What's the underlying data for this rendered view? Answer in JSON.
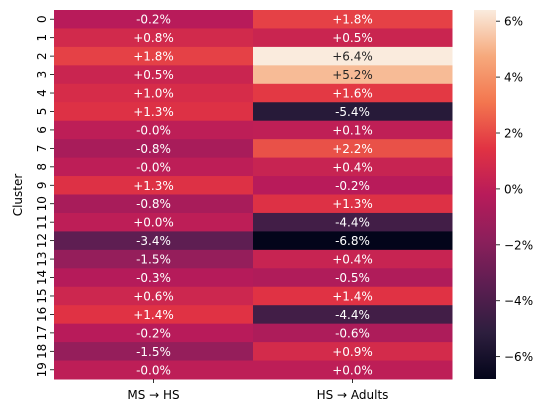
{
  "chart_data": {
    "type": "heatmap",
    "title": "",
    "xlabel": "",
    "ylabel": "Cluster",
    "columns": [
      "MS → HS",
      "HS → Adults"
    ],
    "rows": [
      "0",
      "1",
      "2",
      "3",
      "4",
      "5",
      "6",
      "7",
      "8",
      "9",
      "10",
      "11",
      "12",
      "13",
      "14",
      "15",
      "16",
      "17",
      "18",
      "19"
    ],
    "values": [
      [
        -0.2,
        1.8
      ],
      [
        0.8,
        0.5
      ],
      [
        1.8,
        6.4
      ],
      [
        0.5,
        5.2
      ],
      [
        1.0,
        1.6
      ],
      [
        1.3,
        -5.4
      ],
      [
        -0.0,
        0.1
      ],
      [
        -0.8,
        2.2
      ],
      [
        -0.0,
        0.4
      ],
      [
        1.3,
        -0.2
      ],
      [
        -0.8,
        1.3
      ],
      [
        0.0,
        -4.4
      ],
      [
        -3.4,
        -6.8
      ],
      [
        -1.5,
        0.4
      ],
      [
        -0.3,
        -0.5
      ],
      [
        0.6,
        1.4
      ],
      [
        1.4,
        -4.4
      ],
      [
        -0.2,
        -0.6
      ],
      [
        -1.5,
        0.9
      ],
      [
        -0.0,
        0.0
      ]
    ],
    "annotations": [
      [
        "-0.2%",
        "+1.8%"
      ],
      [
        "+0.8%",
        "+0.5%"
      ],
      [
        "+1.8%",
        "+6.4%"
      ],
      [
        "+0.5%",
        "+5.2%"
      ],
      [
        "+1.0%",
        "+1.6%"
      ],
      [
        "+1.3%",
        "-5.4%"
      ],
      [
        "-0.0%",
        "+0.1%"
      ],
      [
        "-0.8%",
        "+2.2%"
      ],
      [
        "-0.0%",
        "+0.4%"
      ],
      [
        "+1.3%",
        "-0.2%"
      ],
      [
        "-0.8%",
        "+1.3%"
      ],
      [
        "+0.0%",
        "-4.4%"
      ],
      [
        "-3.4%",
        "-6.8%"
      ],
      [
        "-1.5%",
        "+0.4%"
      ],
      [
        "-0.3%",
        "-0.5%"
      ],
      [
        "+0.6%",
        "+1.4%"
      ],
      [
        "+1.4%",
        "-4.4%"
      ],
      [
        "-0.2%",
        "-0.6%"
      ],
      [
        "-1.5%",
        "+0.9%"
      ],
      [
        "-0.0%",
        "+0.0%"
      ]
    ],
    "colorbar": {
      "range": [
        -6.8,
        6.4
      ],
      "ticks": [
        -6,
        -4,
        -2,
        0,
        2,
        4,
        6
      ],
      "tick_labels": [
        "−6%",
        "−4%",
        "−2%",
        "0%",
        "2%",
        "4%",
        "6%"
      ],
      "colormap": [
        "#03051a",
        "#2d1e3e",
        "#5b1e51",
        "#8b1f5b",
        "#b81b5a",
        "#e13343",
        "#f3764f",
        "#f6a97c",
        "#faebdd"
      ]
    },
    "grid": false
  }
}
